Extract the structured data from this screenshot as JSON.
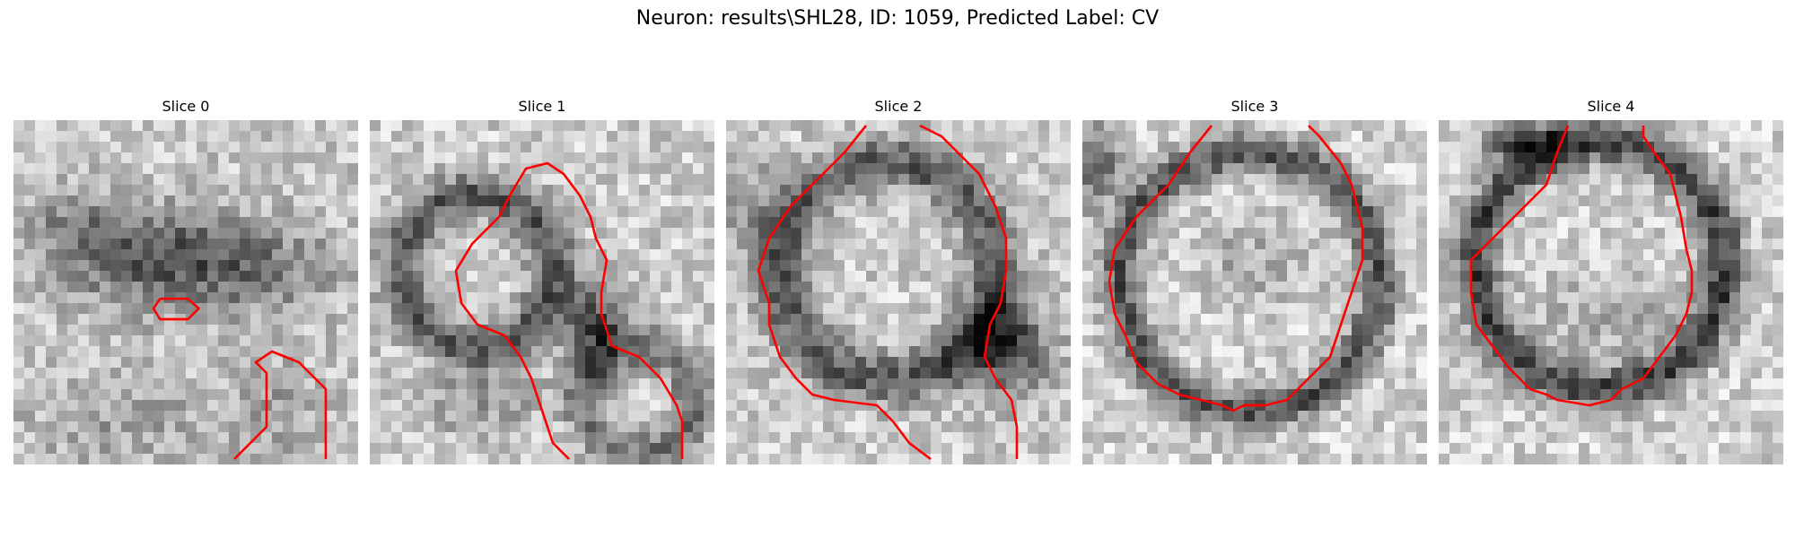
{
  "figure": {
    "suptitle": "Neuron: results\\SHL28, ID: 1059, Predicted Label: CV",
    "contour_color": "#ff0000",
    "colormap": "gray",
    "slices": [
      {
        "title": "Slice 0"
      },
      {
        "title": "Slice 1"
      },
      {
        "title": "Slice 2"
      },
      {
        "title": "Slice 3"
      },
      {
        "title": "Slice 4"
      }
    ]
  }
}
